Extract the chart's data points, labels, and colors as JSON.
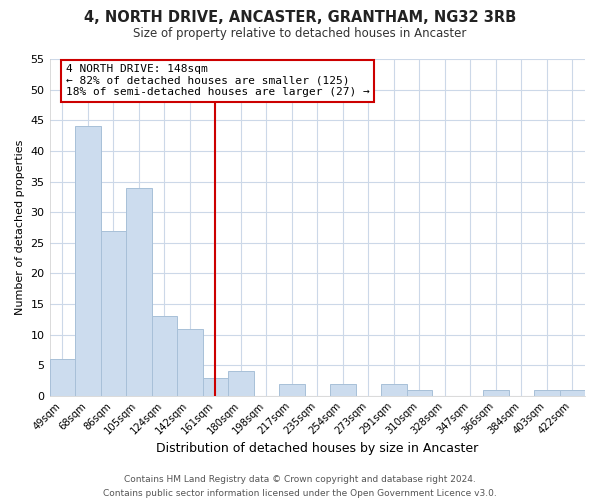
{
  "title": "4, NORTH DRIVE, ANCASTER, GRANTHAM, NG32 3RB",
  "subtitle": "Size of property relative to detached houses in Ancaster",
  "xlabel": "Distribution of detached houses by size in Ancaster",
  "ylabel": "Number of detached properties",
  "bar_color": "#ccdcee",
  "bar_edge_color": "#a8c0d8",
  "bin_labels": [
    "49sqm",
    "68sqm",
    "86sqm",
    "105sqm",
    "124sqm",
    "142sqm",
    "161sqm",
    "180sqm",
    "198sqm",
    "217sqm",
    "235sqm",
    "254sqm",
    "273sqm",
    "291sqm",
    "310sqm",
    "328sqm",
    "347sqm",
    "366sqm",
    "384sqm",
    "403sqm",
    "422sqm"
  ],
  "bar_heights": [
    6,
    44,
    27,
    34,
    13,
    11,
    3,
    4,
    0,
    2,
    0,
    2,
    0,
    2,
    1,
    0,
    0,
    1,
    0,
    1,
    1
  ],
  "ylim": [
    0,
    55
  ],
  "yticks": [
    0,
    5,
    10,
    15,
    20,
    25,
    30,
    35,
    40,
    45,
    50,
    55
  ],
  "vline_x_index": 6,
  "vline_color": "#cc0000",
  "annotation_line1": "4 NORTH DRIVE: 148sqm",
  "annotation_line2": "← 82% of detached houses are smaller (125)",
  "annotation_line3": "18% of semi-detached houses are larger (27) →",
  "annotation_box_color": "#ffffff",
  "annotation_box_edge": "#cc0000",
  "grid_color": "#ccd8e8",
  "bg_color": "#ffffff",
  "footer_text": "Contains HM Land Registry data © Crown copyright and database right 2024.\nContains public sector information licensed under the Open Government Licence v3.0.",
  "title_fontsize": 10.5,
  "subtitle_fontsize": 8.5,
  "xlabel_fontsize": 9,
  "ylabel_fontsize": 8,
  "footer_fontsize": 6.5
}
